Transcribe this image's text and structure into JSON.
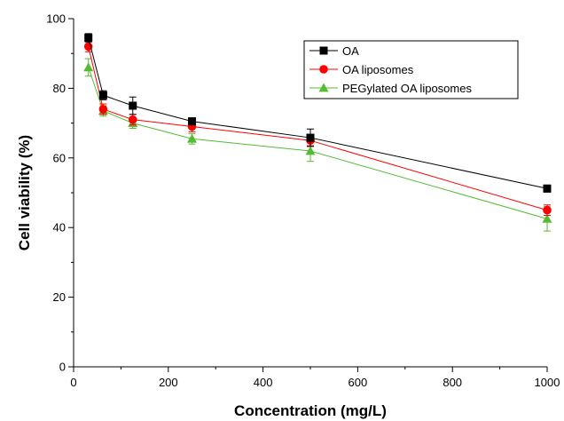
{
  "chart_data": {
    "type": "line",
    "title": "",
    "xlabel": "Concentration (mg/L)",
    "ylabel": "Cell viability (%)",
    "xlim": [
      0,
      1000
    ],
    "ylim": [
      0,
      100
    ],
    "x_ticks": [
      0,
      200,
      400,
      600,
      800,
      1000
    ],
    "y_ticks": [
      0,
      20,
      40,
      60,
      80,
      100
    ],
    "grid": false,
    "legend_position": "top-right",
    "x": [
      31.25,
      62.5,
      125,
      250,
      500,
      1000
    ],
    "series": [
      {
        "name": "OA",
        "color": "#000000",
        "marker": "square",
        "values": [
          94.5,
          78.0,
          75.0,
          70.5,
          65.8,
          51.2
        ],
        "errors": [
          1.2,
          1.3,
          2.5,
          1.0,
          2.5,
          1.0
        ]
      },
      {
        "name": "OA liposomes",
        "color": "#ff0000",
        "marker": "circle",
        "values": [
          92.0,
          74.0,
          71.0,
          69.0,
          65.0,
          45.0
        ],
        "errors": [
          1.5,
          1.5,
          1.5,
          1.5,
          1.5,
          1.5
        ]
      },
      {
        "name": "PEGylated OA liposomes",
        "color": "#55bb33",
        "marker": "triangle",
        "values": [
          86.0,
          73.5,
          70.0,
          65.5,
          62.0,
          42.5
        ],
        "errors": [
          2.5,
          1.5,
          1.5,
          1.5,
          3.0,
          3.5
        ]
      }
    ]
  }
}
